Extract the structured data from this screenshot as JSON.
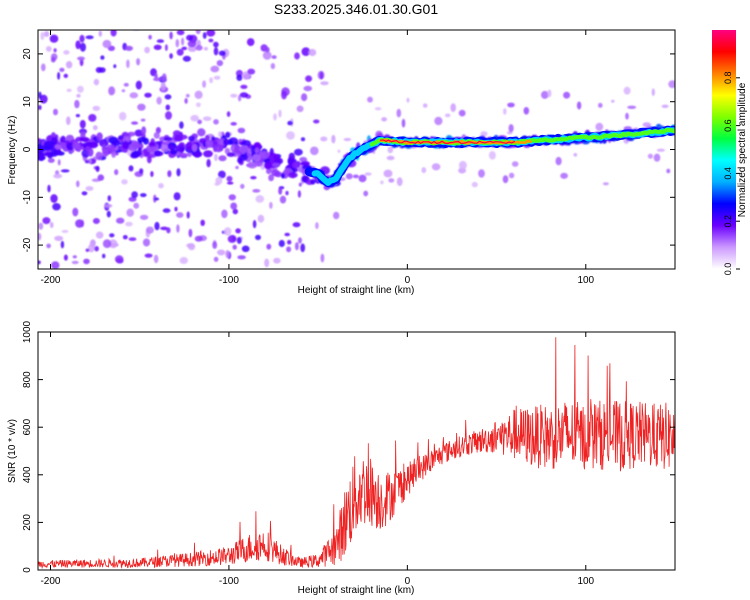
{
  "figure": {
    "title": "S233.2025.346.01.30.G01"
  },
  "chart_data": [
    {
      "type": "heatmap",
      "xlabel": "Height of straight line (km)",
      "ylabel": "Frequency (Hz)",
      "xlim": [
        -207,
        150
      ],
      "ylim": [
        -25,
        25
      ],
      "xticks": [
        -200,
        -100,
        0,
        100
      ],
      "yticks": [
        -20,
        -10,
        0,
        10,
        20
      ],
      "colorbar": {
        "label": "Normalized spectral amplitude",
        "range": [
          0,
          1
        ],
        "ticks": [
          0.0,
          0.2,
          0.4,
          0.6,
          0.8
        ],
        "colors": [
          "#ffffff",
          "#cc99ff",
          "#6a00ff",
          "#0000ff",
          "#00b0ff",
          "#00ffff",
          "#00ff40",
          "#80ff00",
          "#ffff00",
          "#ff8000",
          "#ff0000",
          "#ff0080"
        ]
      },
      "ridge": {
        "x": [
          -207,
          -180,
          -150,
          -120,
          -100,
          -90,
          -80,
          -70,
          -60,
          -50,
          -45,
          -40,
          -35,
          -30,
          -25,
          -20,
          -15,
          0,
          20,
          40,
          60,
          80,
          100,
          120,
          150
        ],
        "y": [
          0,
          1,
          1,
          1,
          1,
          -1,
          -2,
          -4,
          -4,
          -5,
          -7,
          -6,
          -3,
          -1,
          0,
          1,
          2,
          1.5,
          1.5,
          1.5,
          1.5,
          2,
          2.5,
          3,
          4
        ]
      }
    },
    {
      "type": "line",
      "xlabel": "Height of straight line (km)",
      "ylabel": "SNR (10 * v/v)",
      "xlim": [
        -207,
        150
      ],
      "ylim": [
        0,
        1000
      ],
      "xticks": [
        -200,
        -100,
        0,
        100
      ],
      "yticks": [
        0,
        200,
        400,
        600,
        800,
        1000
      ],
      "series": [
        {
          "name": "SNR",
          "color": "#ee2222",
          "envelope_x": [
            -207,
            -150,
            -120,
            -100,
            -90,
            -80,
            -70,
            -60,
            -50,
            -40,
            -35,
            -30,
            -25,
            -20,
            -15,
            -10,
            0,
            10,
            20,
            30,
            40,
            50,
            60,
            70,
            80,
            90,
            100,
            110,
            120,
            130,
            140,
            150
          ],
          "envelope_y": [
            25,
            30,
            45,
            60,
            90,
            110,
            60,
            30,
            40,
            100,
            200,
            300,
            340,
            330,
            290,
            310,
            380,
            440,
            490,
            520,
            540,
            560,
            570,
            560,
            560,
            570,
            560,
            570,
            560,
            570,
            560,
            560
          ],
          "noise": [
            15,
            20,
            30,
            40,
            60,
            70,
            40,
            20,
            30,
            80,
            150,
            180,
            160,
            150,
            130,
            110,
            70,
            50,
            45,
            45,
            50,
            70,
            110,
            130,
            140,
            150,
            140,
            150,
            150,
            140,
            140,
            150
          ]
        }
      ]
    }
  ]
}
